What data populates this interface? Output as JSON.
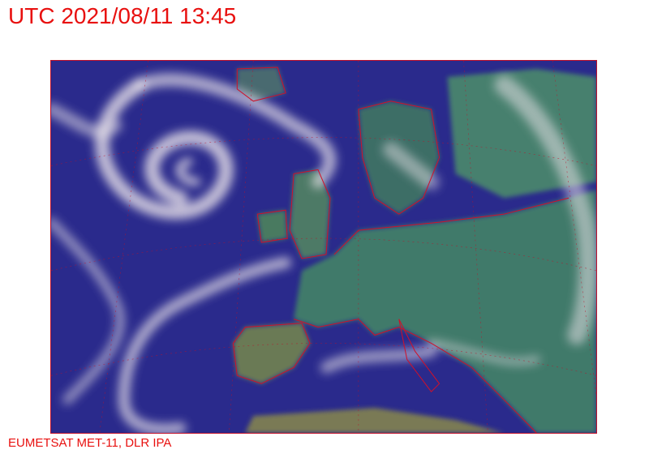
{
  "header": {
    "timestamp": "UTC 2021/08/11 13:45"
  },
  "map": {
    "kind": "satellite-rgb-composite",
    "region": "Europe and North Atlantic",
    "colors": {
      "ocean": "#2a2a8c",
      "land": "#3f7a6a",
      "clouds": "#e8e2e8",
      "borders": "#d0102a"
    }
  },
  "footer": {
    "credit": "EUMETSAT MET-11, DLR IPA"
  }
}
